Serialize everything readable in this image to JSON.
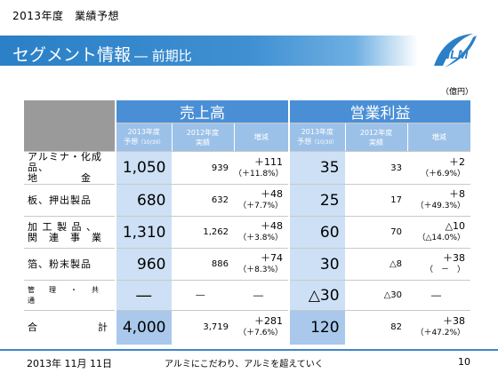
{
  "header": {
    "top_label": "2013年度　業績予想",
    "title": "セグメント情報",
    "subtitle": "― 前期比",
    "logo_text": "NLM"
  },
  "unit_label": "（億円）",
  "table": {
    "group_sales": "売上高",
    "group_profit": "営業利益",
    "sub_cur_line1": "2013年度",
    "sub_cur_line2": "予想",
    "sub_cur_note": "（10/30）",
    "sub_prev_line1": "2012年度",
    "sub_prev_line2": "実績",
    "sub_chg": "増減",
    "rows": [
      {
        "l1": "アルミナ・化成品、",
        "l2": "地　　　　金",
        "s_cur": "1,050",
        "s_prev": "939",
        "s_chg": "＋111",
        "s_pct": "（＋11.8%）",
        "p_cur": "35",
        "p_prev": "33",
        "p_chg": "＋2",
        "p_pct": "（＋6.9%）"
      },
      {
        "l1": "板、押出製品",
        "l2": "",
        "s_cur": "680",
        "s_prev": "632",
        "s_chg": "＋48",
        "s_pct": "（＋7.7%）",
        "p_cur": "25",
        "p_prev": "17",
        "p_chg": "＋8",
        "p_pct": "（＋49.3%）"
      },
      {
        "l1": "加 工 製 品 、",
        "l2": "関　連　事　業",
        "s_cur": "1,310",
        "s_prev": "1,262",
        "s_chg": "＋48",
        "s_pct": "（＋3.8%）",
        "p_cur": "60",
        "p_prev": "70",
        "p_chg": "△10",
        "p_pct": "（△14.0%）"
      },
      {
        "l1": "箔、粉末製品",
        "l2": "",
        "s_cur": "960",
        "s_prev": "886",
        "s_chg": "＋74",
        "s_pct": "（＋8.3%）",
        "p_cur": "30",
        "p_prev": "△8",
        "p_chg": "＋38",
        "p_pct": "（　－　）"
      },
      {
        "l1": "管　理　・　共　通",
        "l2": "",
        "s_cur": "―",
        "s_prev": "―",
        "s_chg": "―",
        "s_pct": "",
        "p_cur": "△30",
        "p_prev": "△30",
        "p_chg": "―",
        "p_pct": ""
      }
    ],
    "total": {
      "label_a": "合",
      "label_b": "計",
      "s_cur": "4,000",
      "s_prev": "3,719",
      "s_chg": "＋281",
      "s_pct": "（＋7.6%）",
      "p_cur": "120",
      "p_prev": "82",
      "p_chg": "＋38",
      "p_pct": "（＋47.2%）"
    }
  },
  "footer": {
    "date": "2013年 11月 11日",
    "slogan": "アルミにこだわり、アルミを超えていく",
    "page": "10"
  },
  "colors": {
    "accent": "#3f90d2",
    "header_group": "#4a8fd6",
    "header_sub": "#9cc1e8",
    "cur_cell": "#cde0f5"
  }
}
